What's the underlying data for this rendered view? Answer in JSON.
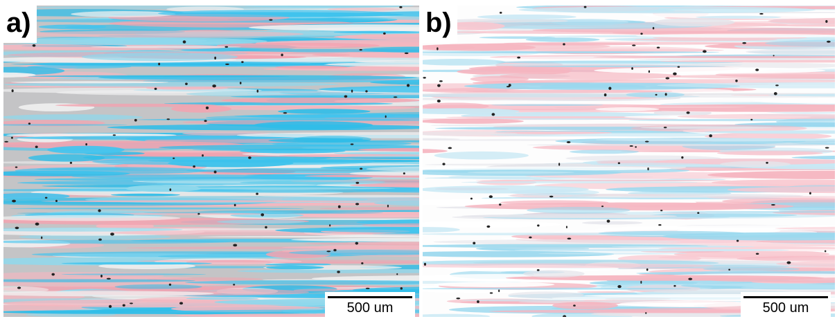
{
  "panels": [
    {
      "label": "a)",
      "scale_bar": "500 um"
    },
    {
      "label": "b)",
      "scale_bar": "500 um"
    }
  ]
}
